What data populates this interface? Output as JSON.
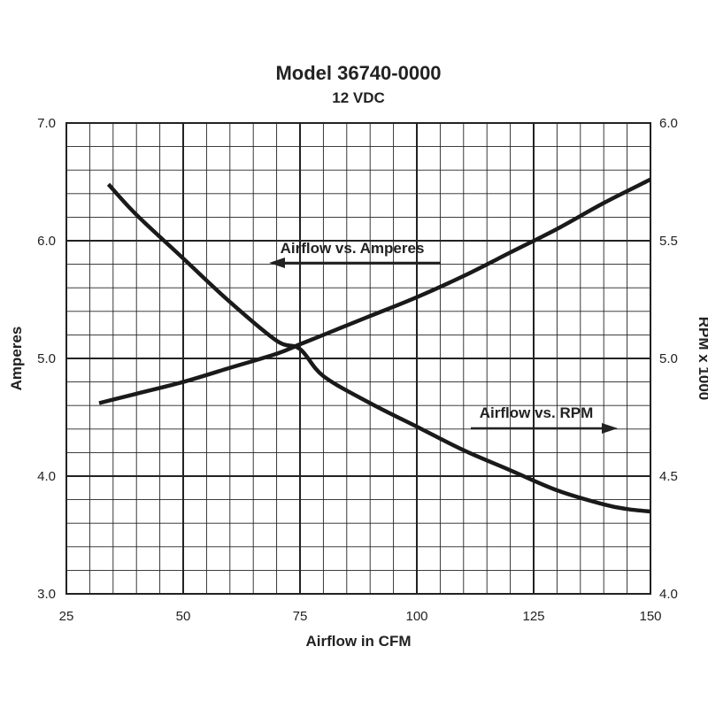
{
  "chart_data": {
    "type": "line",
    "title": "Model 36740-0000",
    "subtitle": "12 VDC",
    "xlabel": "Airflow in CFM",
    "ylabel": "Amperes",
    "y2label": "RPM x 1000",
    "xlim": [
      25,
      150
    ],
    "ylim": [
      3.0,
      7.0
    ],
    "y2lim": [
      4.0,
      6.0
    ],
    "x_ticks": [
      "25",
      "50",
      "75",
      "100",
      "125",
      "150"
    ],
    "y_ticks": [
      "3.0",
      "4.0",
      "5.0",
      "6.0",
      "7.0"
    ],
    "y2_ticks": [
      "4.0",
      "4.5",
      "5.0",
      "5.5",
      "6.0"
    ],
    "grid": true,
    "series": [
      {
        "name": "Airflow vs. Amperes",
        "axis": "left",
        "x": [
          34,
          40,
          50,
          60,
          70,
          75,
          80,
          90,
          100,
          110,
          120,
          130,
          140,
          145,
          150
        ],
        "y": [
          6.48,
          6.22,
          5.85,
          5.48,
          5.15,
          5.08,
          4.85,
          4.62,
          4.42,
          4.22,
          4.05,
          3.88,
          3.76,
          3.72,
          3.7
        ]
      },
      {
        "name": "Airflow vs. RPM",
        "axis": "right",
        "x": [
          32,
          40,
          50,
          60,
          70,
          75,
          80,
          90,
          100,
          110,
          120,
          130,
          140,
          150
        ],
        "y": [
          4.81,
          4.85,
          4.9,
          4.96,
          5.02,
          5.06,
          5.1,
          5.18,
          5.26,
          5.35,
          5.45,
          5.55,
          5.66,
          5.76
        ]
      }
    ],
    "annotations": [
      {
        "text": "Airflow vs. Amperes",
        "arrow": "left"
      },
      {
        "text": "Airflow vs. RPM",
        "arrow": "right"
      }
    ]
  }
}
